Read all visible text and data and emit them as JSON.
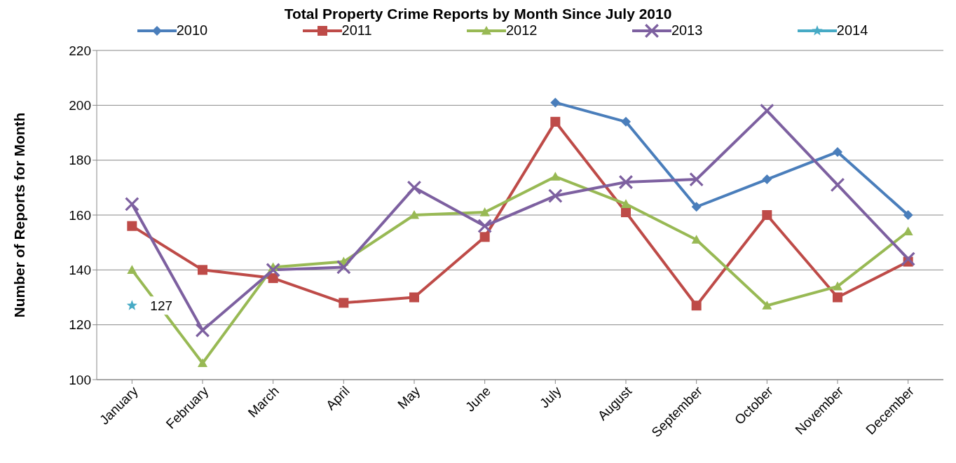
{
  "chart_data": {
    "type": "line",
    "title": "Total Property Crime Reports by Month Since July 2010",
    "ylabel": "Number of Reports for Month",
    "categories": [
      "January",
      "February",
      "March",
      "April",
      "May",
      "June",
      "July",
      "August",
      "September",
      "October",
      "November",
      "December"
    ],
    "series": [
      {
        "name": "2010",
        "color": "#4a7ebb",
        "marker": "diamond",
        "values": [
          null,
          null,
          null,
          null,
          null,
          null,
          201,
          194,
          163,
          173,
          183,
          160
        ]
      },
      {
        "name": "2011",
        "color": "#be4b48",
        "marker": "square",
        "values": [
          156,
          140,
          137,
          128,
          130,
          152,
          194,
          161,
          127,
          160,
          130,
          143
        ]
      },
      {
        "name": "2012",
        "color": "#98b954",
        "marker": "triangle",
        "values": [
          140,
          106,
          141,
          143,
          160,
          161,
          174,
          164,
          151,
          127,
          134,
          154
        ]
      },
      {
        "name": "2013",
        "color": "#7d60a0",
        "marker": "cross",
        "values": [
          164,
          118,
          140,
          141,
          170,
          156,
          167,
          172,
          173,
          198,
          171,
          144
        ]
      },
      {
        "name": "2014",
        "color": "#46aac5",
        "marker": "star",
        "values": [
          127,
          null,
          null,
          null,
          null,
          null,
          null,
          null,
          null,
          null,
          null,
          null
        ],
        "value_labels": [
          "127",
          null,
          null,
          null,
          null,
          null,
          null,
          null,
          null,
          null,
          null,
          null
        ]
      }
    ],
    "ylim": [
      100,
      220
    ],
    "yticks": [
      100,
      120,
      140,
      160,
      180,
      200,
      220
    ],
    "grid": "y",
    "legend": "top",
    "line_style": "solid"
  }
}
